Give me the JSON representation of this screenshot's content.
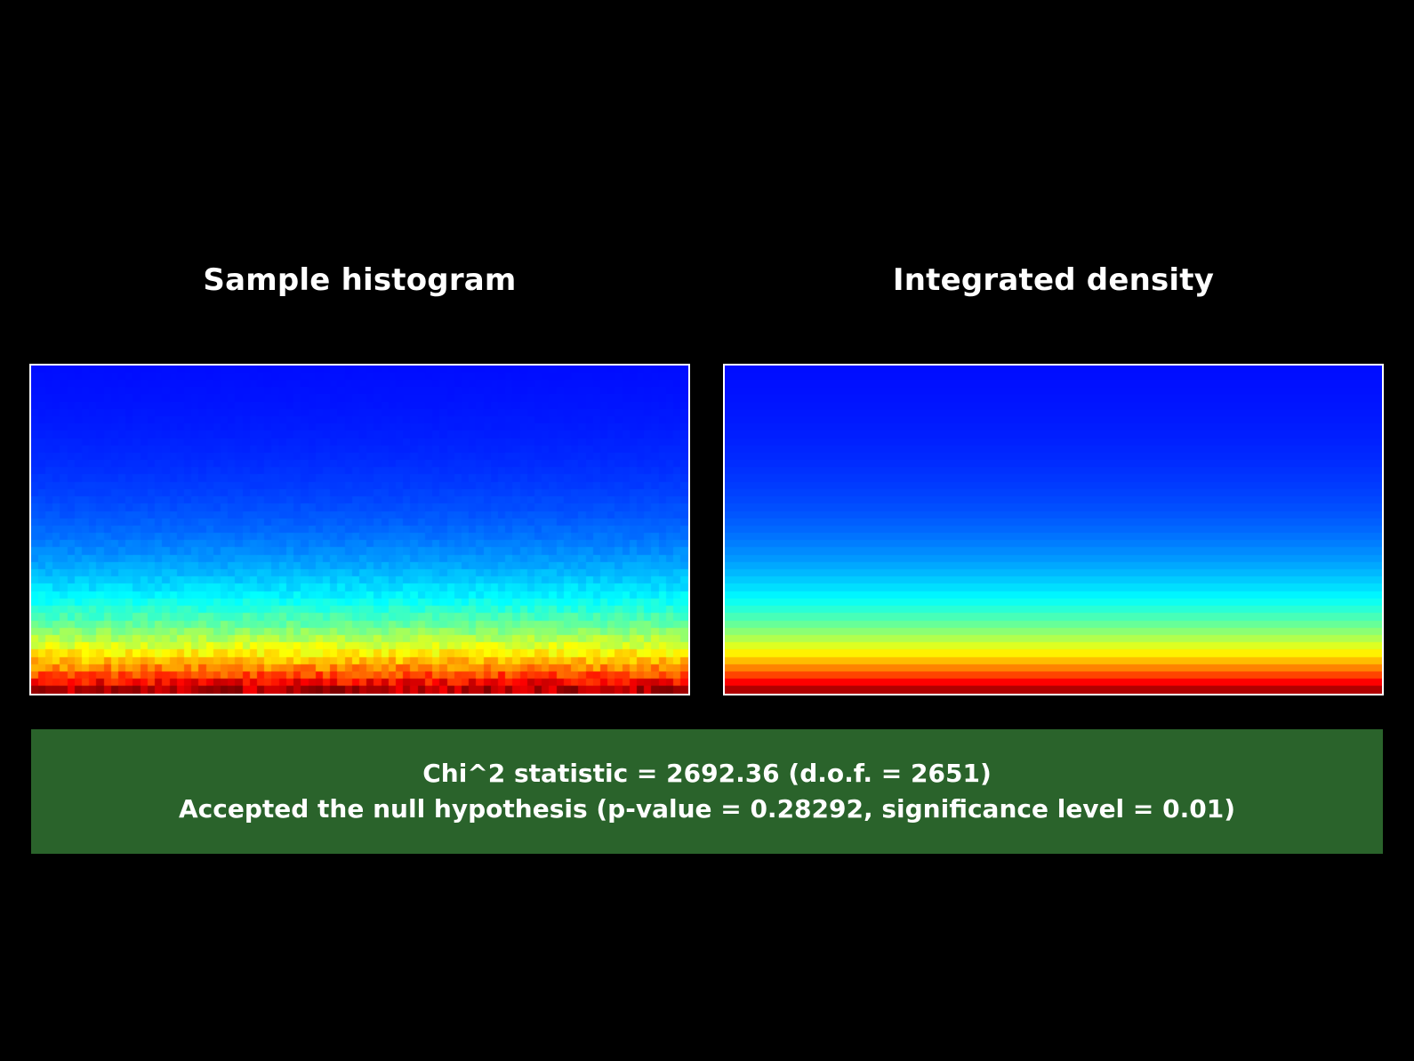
{
  "chart_data": [
    {
      "type": "heatmap",
      "title": "Sample histogram",
      "colormap": "jet",
      "grid": false,
      "legend": "none",
      "x_bins": 90,
      "y_bins": 45,
      "profile": "intensity increases exponentially from top (low, blue) to bottom (high, red)",
      "noise": true
    },
    {
      "type": "heatmap",
      "title": "Integrated density",
      "colormap": "jet",
      "grid": false,
      "legend": "none",
      "x_bins": 90,
      "y_bins": 45,
      "profile": "intensity increases exponentially from top (low, blue) to bottom (high, red)",
      "noise": false
    }
  ],
  "result": {
    "line1": "Chi^2 statistic = 2692.36 (d.o.f. = 2651)",
    "line2": "Accepted the null hypothesis (p-value = 0.28292, significance level = 0.01)",
    "background_color": "#2a632b"
  },
  "colors": {
    "background": "#000000",
    "frame": "#ffffff",
    "text": "#ffffff"
  }
}
